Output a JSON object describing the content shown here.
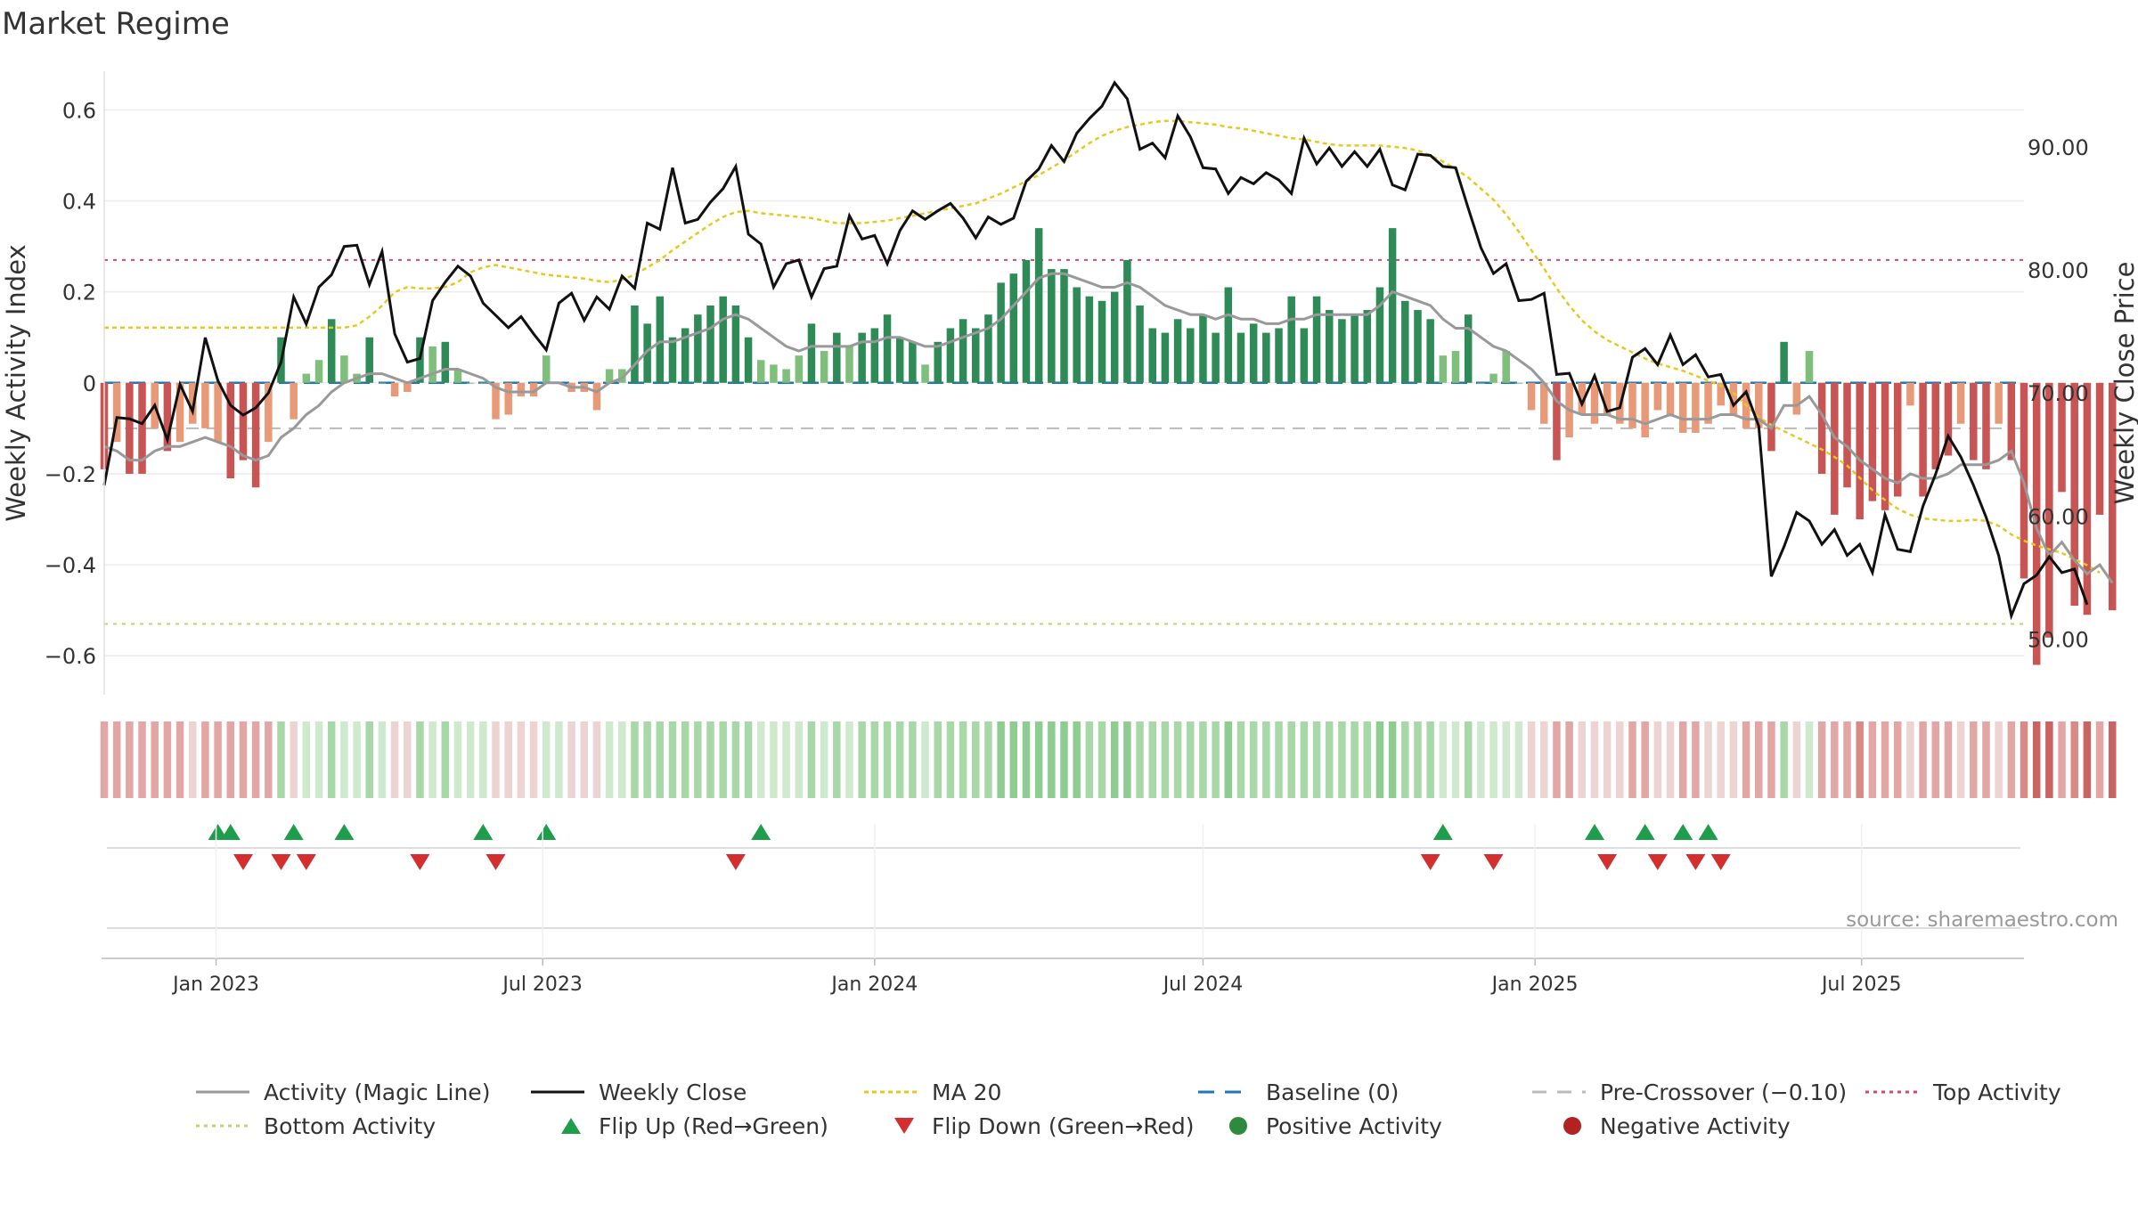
{
  "title": "Market Regime",
  "source": "source: sharemaestro.com",
  "chart_data": {
    "type": "bar",
    "left_axis": {
      "label": "Weekly Activity Index",
      "ylim": [
        -0.67,
        0.63
      ],
      "ticks": [
        0.6,
        0.4,
        0.2,
        0,
        -0.2,
        -0.4,
        -0.6
      ],
      "tick_labels": [
        "0.6",
        "0.4",
        "0.2",
        "0",
        "−0.2",
        "−0.4",
        "−0.6"
      ]
    },
    "right_axis": {
      "label": "Weekly Close Price",
      "ylim": [
        46.06,
        94.11
      ],
      "ticks": [
        90,
        80,
        70,
        60,
        50
      ],
      "tick_labels": [
        "90.00",
        "80.00",
        "70.00",
        "60.00",
        "50.00"
      ]
    },
    "x_axis": {
      "type": "date",
      "range": [
        "2022-10-31",
        "2025-09-29"
      ],
      "ticks": [
        "2023-01-01",
        "2023-07-01",
        "2024-01-01",
        "2024-07-01",
        "2025-01-01",
        "2025-07-01"
      ],
      "tick_labels": [
        "Jan 2023",
        "Jul 2023",
        "Jan 2024",
        "Jul 2024",
        "Jan 2025",
        "Jul 2025"
      ]
    },
    "grid": true,
    "reference_lines": [
      {
        "name": "Baseline (0)",
        "value": 0,
        "color": "#1f77b4",
        "style": "dashed"
      },
      {
        "name": "Pre-Crossover (−0.10)",
        "value": -0.1,
        "color": "#bbbbbb",
        "style": "dashed"
      },
      {
        "name": "Top Activity",
        "value": 0.27,
        "color": "#d6476b",
        "style": "dotted"
      },
      {
        "name": "Bottom Activity",
        "value": -0.53,
        "color": "#b5d96a",
        "style": "dotted"
      }
    ],
    "series": [
      {
        "name": "Activity (Magic Line)",
        "color": "#999999"
      },
      {
        "name": "Weekly Close",
        "color": "#111111"
      },
      {
        "name": "MA 20",
        "color": "#e8c81f"
      },
      {
        "name": "Baseline (0)",
        "color": "#1f77b4"
      },
      {
        "name": "Pre-Crossover (−0.10)",
        "color": "#bbbbbb"
      },
      {
        "name": "Top Activity",
        "color": "#d6476b"
      },
      {
        "name": "Bottom Activity",
        "color": "#b5d96a"
      },
      {
        "name": "Flip Up (Red→Green)",
        "color": "#1e9e4a"
      },
      {
        "name": "Flip Down (Green→Red)",
        "color": "#d32f2f"
      },
      {
        "name": "Positive Activity",
        "color": "#2e8b3e"
      },
      {
        "name": "Negative Activity",
        "color": "#b22222"
      }
    ],
    "start_date": "2022-10-31",
    "activity": [
      -0.19,
      -0.13,
      -0.2,
      -0.2,
      -0.1,
      -0.15,
      -0.13,
      -0.09,
      -0.1,
      -0.13,
      -0.21,
      -0.17,
      -0.23,
      -0.13,
      0.1,
      -0.08,
      0.02,
      0.05,
      0.14,
      0.06,
      0.02,
      0.1,
      0.0,
      -0.03,
      -0.02,
      0.1,
      0.08,
      0.09,
      0.03,
      0.0,
      0.0,
      -0.08,
      -0.07,
      -0.03,
      -0.03,
      0.06,
      0.0,
      -0.02,
      -0.02,
      -0.06,
      0.03,
      0.03,
      0.17,
      0.13,
      0.19,
      0.1,
      0.12,
      0.15,
      0.17,
      0.19,
      0.17,
      0.1,
      0.05,
      0.04,
      0.03,
      0.06,
      0.13,
      0.07,
      0.11,
      0.08,
      0.11,
      0.12,
      0.15,
      0.1,
      0.09,
      0.04,
      0.09,
      0.12,
      0.14,
      0.12,
      0.15,
      0.22,
      0.24,
      0.27,
      0.34,
      0.25,
      0.25,
      0.21,
      0.19,
      0.18,
      0.2,
      0.27,
      0.17,
      0.12,
      0.11,
      0.14,
      0.12,
      0.15,
      0.11,
      0.21,
      0.11,
      0.13,
      0.11,
      0.12,
      0.19,
      0.12,
      0.19,
      0.16,
      0.14,
      0.15,
      0.16,
      0.21,
      0.34,
      0.18,
      0.16,
      0.14,
      0.06,
      0.07,
      0.15,
      0.0,
      0.02,
      0.07,
      0.0,
      -0.06,
      -0.09,
      -0.17,
      -0.12,
      -0.07,
      -0.09,
      -0.07,
      -0.09,
      -0.1,
      -0.12,
      -0.06,
      -0.07,
      -0.11,
      -0.11,
      -0.09,
      -0.05,
      -0.07,
      -0.1,
      -0.1,
      -0.15,
      0.09,
      -0.07,
      0.07,
      -0.2,
      -0.29,
      -0.23,
      -0.3,
      -0.26,
      -0.28,
      -0.25,
      -0.05,
      -0.25,
      -0.19,
      -0.16,
      -0.09,
      -0.17,
      -0.19,
      -0.09,
      -0.17,
      -0.43,
      -0.62,
      -0.56,
      -0.24,
      -0.49,
      -0.51,
      -0.29,
      -0.5
    ],
    "magic_line": [
      -0.14,
      -0.15,
      -0.17,
      -0.17,
      -0.15,
      -0.14,
      -0.14,
      -0.13,
      -0.12,
      -0.13,
      -0.14,
      -0.16,
      -0.17,
      -0.16,
      -0.12,
      -0.1,
      -0.07,
      -0.05,
      -0.02,
      0.0,
      0.01,
      0.02,
      0.02,
      0.01,
      0.0,
      0.01,
      0.02,
      0.03,
      0.03,
      0.02,
      0.01,
      -0.01,
      -0.02,
      -0.02,
      -0.02,
      0.0,
      0.0,
      -0.01,
      -0.01,
      -0.02,
      0.0,
      0.01,
      0.04,
      0.07,
      0.09,
      0.09,
      0.1,
      0.11,
      0.12,
      0.14,
      0.15,
      0.14,
      0.12,
      0.1,
      0.08,
      0.07,
      0.08,
      0.08,
      0.08,
      0.08,
      0.09,
      0.09,
      0.1,
      0.1,
      0.09,
      0.08,
      0.08,
      0.09,
      0.1,
      0.11,
      0.12,
      0.14,
      0.17,
      0.2,
      0.23,
      0.24,
      0.24,
      0.23,
      0.22,
      0.21,
      0.21,
      0.22,
      0.21,
      0.19,
      0.17,
      0.16,
      0.15,
      0.15,
      0.14,
      0.15,
      0.14,
      0.14,
      0.13,
      0.13,
      0.14,
      0.14,
      0.15,
      0.15,
      0.15,
      0.15,
      0.15,
      0.17,
      0.2,
      0.19,
      0.18,
      0.17,
      0.14,
      0.12,
      0.12,
      0.1,
      0.08,
      0.07,
      0.05,
      0.03,
      0.0,
      -0.04,
      -0.06,
      -0.07,
      -0.07,
      -0.07,
      -0.08,
      -0.08,
      -0.09,
      -0.08,
      -0.07,
      -0.08,
      -0.08,
      -0.08,
      -0.07,
      -0.07,
      -0.08,
      -0.08,
      -0.1,
      -0.05,
      -0.05,
      -0.03,
      -0.07,
      -0.12,
      -0.14,
      -0.17,
      -0.19,
      -0.21,
      -0.22,
      -0.2,
      -0.21,
      -0.21,
      -0.2,
      -0.18,
      -0.18,
      -0.18,
      -0.17,
      -0.15,
      -0.22,
      -0.32,
      -0.38,
      -0.35,
      -0.39,
      -0.42,
      -0.4,
      -0.44
    ],
    "weekly_close": [
      62.5,
      68,
      67.9,
      67.5,
      69,
      66.2,
      70.7,
      68.5,
      74.5,
      71,
      69,
      68.2,
      68.8,
      70,
      72.5,
      77.8,
      75.6,
      78.6,
      79.6,
      81.9,
      82,
      78.8,
      81.5,
      74.8,
      72.5,
      72.8,
      77.5,
      79,
      80.3,
      79.5,
      77.3,
      76.3,
      75.3,
      76.2,
      74.8,
      73.5,
      77.3,
      78.1,
      75.9,
      77.8,
      76.8,
      79.5,
      78.5,
      83.8,
      83.3,
      88.3,
      83.8,
      84.1,
      85.5,
      86.6,
      88.4,
      82.9,
      82.1,
      78.6,
      80.5,
      80.8,
      77.8,
      80.1,
      80.3,
      84.4,
      82.5,
      82.8,
      80.5,
      83.2,
      84.8,
      84.1,
      84.8,
      85.4,
      84.2,
      82.6,
      84.3,
      83.7,
      84.2,
      87.2,
      88.2,
      90.1,
      88.8,
      91.1,
      92.3,
      93.3,
      95.2,
      93.9,
      89.8,
      90.3,
      89.1,
      92.5,
      90.8,
      88.3,
      88.2,
      86.2,
      87.5,
      87,
      87.9,
      87.3,
      86.2,
      90.7,
      88.6,
      89.9,
      88.4,
      89.6,
      88.4,
      89.8,
      86.9,
      86.5,
      89.4,
      89.3,
      88.4,
      88.3,
      85,
      81.8,
      79.7,
      80.5,
      77.5,
      77.6,
      78.1,
      71.5,
      71.6,
      69.1,
      71.4,
      68.5,
      68.8,
      72.9,
      73.6,
      72.3,
      74.7,
      72.3,
      73.1,
      71.3,
      71.5,
      69,
      70.1,
      67.3,
      55.1,
      57.5,
      60.3,
      59.6,
      57.7,
      58.9,
      56.8,
      57.7,
      55.4,
      60.1,
      57.3,
      57.1,
      60.8,
      63.4,
      66.5,
      64.8,
      62.5,
      59.9,
      56.8,
      51.9,
      54.5,
      55.2,
      56.7,
      55.4,
      55.7,
      52.8
    ],
    "ma20": [
      75.3,
      75.3,
      75.3,
      75.3,
      75.3,
      75.3,
      75.3,
      75.3,
      75.3,
      75.3,
      75.3,
      75.3,
      75.3,
      75.3,
      75.3,
      75.3,
      75.3,
      75.3,
      75.3,
      75.3,
      75.5,
      76.2,
      77.1,
      78.2,
      78.6,
      78.5,
      78.5,
      78.6,
      79,
      79.8,
      80.2,
      80.4,
      80.2,
      80,
      79.8,
      79.6,
      79.5,
      79.4,
      79.3,
      79.1,
      79,
      79.2,
      79.6,
      80.2,
      80.8,
      81.6,
      82.3,
      83,
      83.7,
      84.3,
      84.7,
      84.8,
      84.6,
      84.5,
      84.4,
      84.3,
      84.2,
      84,
      83.8,
      83.8,
      83.8,
      83.9,
      84,
      84.2,
      84.4,
      84.6,
      84.8,
      85,
      85.2,
      85.4,
      85.8,
      86.2,
      86.7,
      87.2,
      87.7,
      88.3,
      88.9,
      89.6,
      90.3,
      90.9,
      91.3,
      91.6,
      91.8,
      92,
      92.1,
      92.1,
      92,
      91.9,
      91.8,
      91.6,
      91.5,
      91.3,
      91.1,
      90.9,
      90.7,
      90.6,
      90.4,
      90.2,
      90.1,
      90.1,
      90.1,
      90.1,
      90,
      89.9,
      89.7,
      89.3,
      88.8,
      88.2,
      87.5,
      86.6,
      85.7,
      84.5,
      83.1,
      81.6,
      80.1,
      78.5,
      77.1,
      75.9,
      75,
      74.3,
      73.8,
      73.3,
      72.8,
      72.4,
      72.1,
      71.8,
      71.4,
      71,
      70.6,
      70,
      69,
      68,
      67.4,
      66.9,
      66.4,
      65.9,
      65.4,
      64.8,
      64.1,
      63.1,
      62.1,
      61.3,
      60.6,
      60.1,
      59.8,
      59.7,
      59.6,
      59.6,
      59.7,
      59.6,
      59.2,
      58.5,
      58,
      57.6,
      57.3,
      57,
      56.5,
      56,
      55.4
    ],
    "flip_up_dates": [
      "2023-01-02",
      "2023-01-09",
      "2023-02-13",
      "2023-03-13",
      "2023-05-29",
      "2023-07-03",
      "2023-10-30",
      "2024-11-11",
      "2025-02-03",
      "2025-03-03",
      "2025-03-24",
      "2025-04-07"
    ],
    "flip_down_dates": [
      "2023-01-16",
      "2023-02-06",
      "2023-02-20",
      "2023-04-24",
      "2023-06-05",
      "2023-10-16",
      "2024-11-04",
      "2024-12-09",
      "2025-02-10",
      "2025-03-10",
      "2025-03-31",
      "2025-04-14"
    ]
  }
}
